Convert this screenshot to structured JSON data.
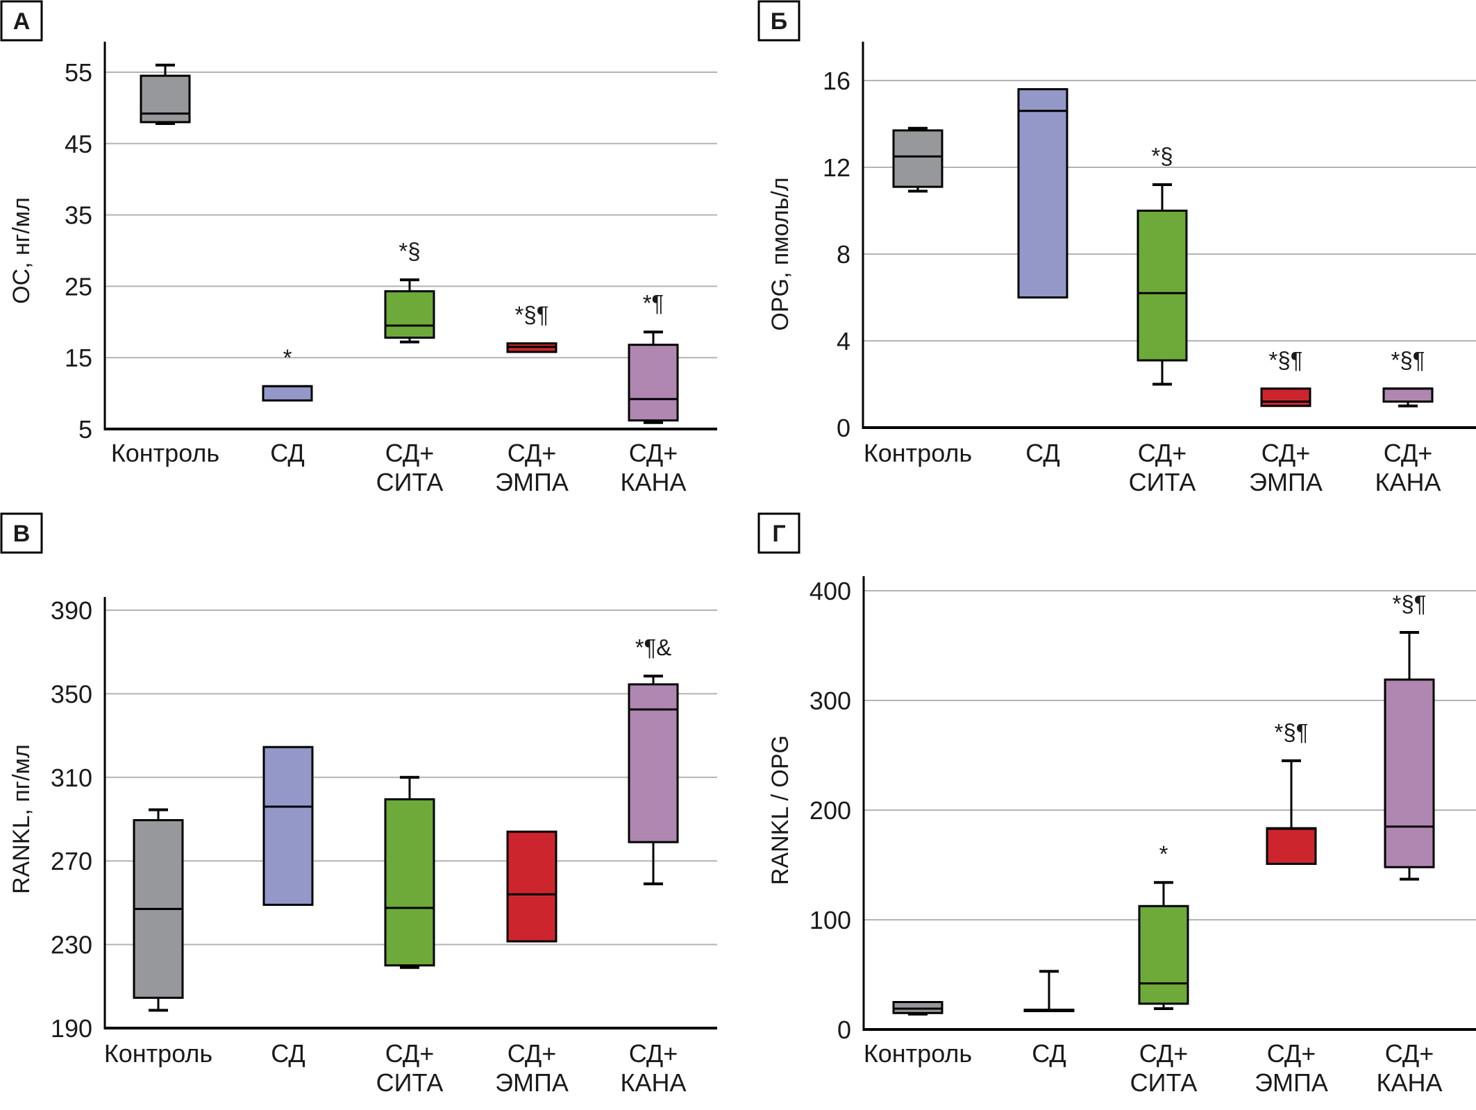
{
  "figure": {
    "categories": [
      [
        "Контроль"
      ],
      [
        "СД"
      ],
      [
        "СД+",
        "СИТА"
      ],
      [
        "СД+",
        "ЭМПА"
      ],
      [
        "СД+",
        "КАНА"
      ]
    ],
    "colors": [
      "#97989b",
      "#9498c9",
      "#6eaa3a",
      "#cc252d",
      "#b087b0"
    ],
    "gridline_color": "#b3b3b3"
  },
  "chart_data": [
    {
      "panel": "А",
      "type": "boxplot",
      "ylabel": "OC, нг/мл",
      "ylim": [
        5,
        59
      ],
      "yticks": [
        5,
        15,
        25,
        35,
        45,
        55
      ],
      "grid": true,
      "categories": [
        "Контроль",
        "СД",
        "СД+СИТА",
        "СД+ЭМПА",
        "СД+КАНА"
      ],
      "boxes": [
        {
          "whisker_low": 47.8,
          "q1": 48.0,
          "median": 49.2,
          "q3": 54.5,
          "whisker_high": 56.0,
          "annotation": ""
        },
        {
          "whisker_low": 9.0,
          "q1": 9.0,
          "median": 11.0,
          "q3": 11.0,
          "whisker_high": 11.0,
          "annotation": "*"
        },
        {
          "whisker_low": 17.2,
          "q1": 17.8,
          "median": 19.5,
          "q3": 24.3,
          "whisker_high": 25.9,
          "annotation": "*§"
        },
        {
          "whisker_low": 15.8,
          "q1": 15.8,
          "median": 16.5,
          "q3": 17.0,
          "whisker_high": 17.0,
          "annotation": "*§¶"
        },
        {
          "whisker_low": 5.9,
          "q1": 6.2,
          "median": 9.2,
          "q3": 16.8,
          "whisker_high": 18.6,
          "annotation": "*¶"
        }
      ]
    },
    {
      "panel": "Б",
      "type": "boxplot",
      "ylabel": "OPG, пмоль/л",
      "ylim": [
        0,
        17.7
      ],
      "yticks": [
        0,
        4,
        8,
        12,
        16
      ],
      "grid": true,
      "categories": [
        "Контроль",
        "СД",
        "СД+СИТА",
        "СД+ЭМПА",
        "СД+КАНА"
      ],
      "boxes": [
        {
          "whisker_low": 10.9,
          "q1": 11.1,
          "median": 12.5,
          "q3": 13.7,
          "whisker_high": 13.8,
          "annotation": ""
        },
        {
          "whisker_low": 6.0,
          "q1": 6.0,
          "median": 14.6,
          "q3": 15.6,
          "whisker_high": 15.6,
          "annotation": ""
        },
        {
          "whisker_low": 2.0,
          "q1": 3.1,
          "median": 6.2,
          "q3": 10.0,
          "whisker_high": 11.2,
          "annotation": "*§"
        },
        {
          "whisker_low": 1.0,
          "q1": 1.0,
          "median": 1.2,
          "q3": 1.8,
          "whisker_high": 1.8,
          "annotation": "*§¶"
        },
        {
          "whisker_low": 1.0,
          "q1": 1.2,
          "median": 1.8,
          "q3": 1.8,
          "whisker_high": 1.8,
          "annotation": "*§¶"
        }
      ]
    },
    {
      "panel": "В",
      "type": "boxplot",
      "ylabel": "RANKL, пг/мл",
      "ylim": [
        190,
        390
      ],
      "yticks": [
        190,
        230,
        270,
        310,
        350,
        390
      ],
      "grid": true,
      "categories": [
        "Контроль",
        "СД",
        "СД+СИТА",
        "СД+ЭМПА",
        "СД+КАНА"
      ],
      "boxes": [
        {
          "whisker_low": 198.5,
          "q1": 204.5,
          "median": 247.0,
          "q3": 289.5,
          "whisker_high": 294.5,
          "annotation": ""
        },
        {
          "whisker_low": 249.0,
          "q1": 249.0,
          "median": 296.0,
          "q3": 324.5,
          "whisker_high": 324.5,
          "annotation": ""
        },
        {
          "whisker_low": 219.0,
          "q1": 220.0,
          "median": 247.5,
          "q3": 299.5,
          "whisker_high": 310.0,
          "annotation": ""
        },
        {
          "whisker_low": 231.5,
          "q1": 231.5,
          "median": 254.0,
          "q3": 284.0,
          "whisker_high": 284.0,
          "annotation": ""
        },
        {
          "whisker_low": 259.0,
          "q1": 279.0,
          "median": 342.5,
          "q3": 354.5,
          "whisker_high": 358.5,
          "annotation": "*¶&"
        }
      ]
    },
    {
      "panel": "Г",
      "type": "boxplot",
      "ylabel": "RANKL / OPG",
      "ylim": [
        0,
        400
      ],
      "yticks": [
        0,
        100,
        200,
        300,
        400
      ],
      "grid": true,
      "categories": [
        "Контроль",
        "СД",
        "СД+СИТА",
        "СД+ЭМПА",
        "СД+КАНА"
      ],
      "boxes": [
        {
          "whisker_low": 14.0,
          "q1": 15.0,
          "median": 19.0,
          "q3": 25.0,
          "whisker_high": 25.0,
          "annotation": ""
        },
        {
          "whisker_low": 17.0,
          "q1": 17.0,
          "median": 17.5,
          "q3": 18.0,
          "whisker_high": 53.0,
          "annotation": ""
        },
        {
          "whisker_low": 19.0,
          "q1": 23.5,
          "median": 42.0,
          "q3": 112.5,
          "whisker_high": 134.0,
          "annotation": "*"
        },
        {
          "whisker_low": 151.0,
          "q1": 151.0,
          "median": 183.0,
          "q3": 183.5,
          "whisker_high": 245.0,
          "annotation": "*§¶"
        },
        {
          "whisker_low": 137.0,
          "q1": 148.0,
          "median": 185.0,
          "q3": 319.0,
          "whisker_high": 362.0,
          "annotation": "*§¶"
        }
      ]
    }
  ]
}
